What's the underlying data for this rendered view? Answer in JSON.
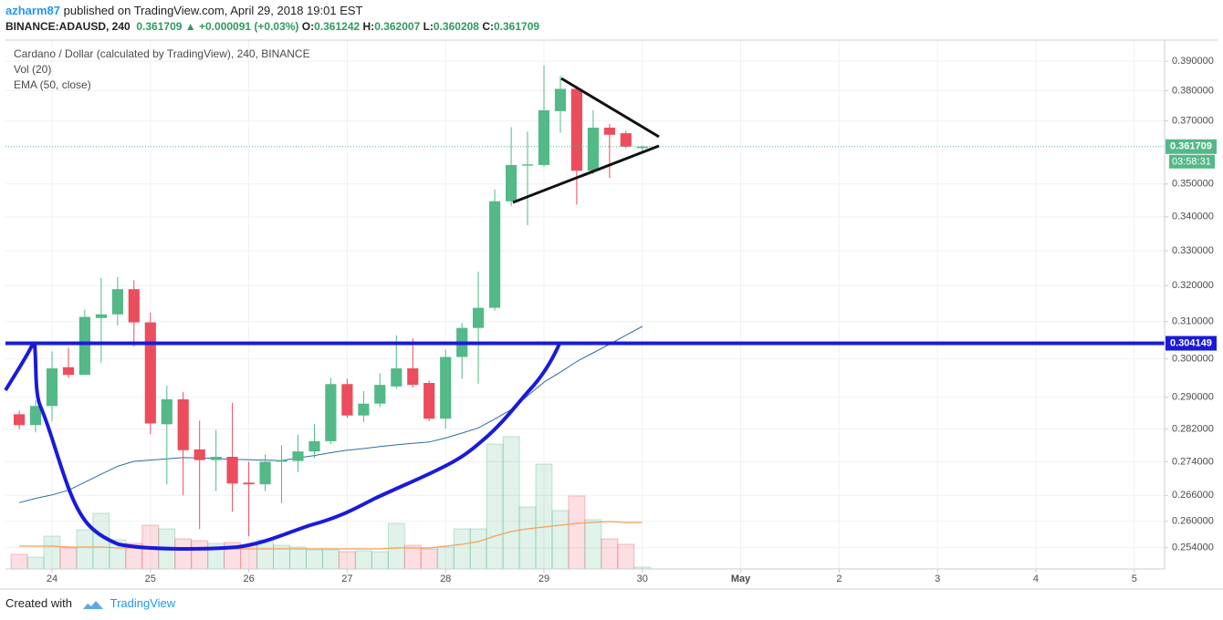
{
  "header": {
    "author": "azharm87",
    "published": "published on TradingView.com, April 29, 2018 19:01 EST",
    "symbol": "BINANCE:ADAUSD, 240",
    "change": "+0.000091 (+0.03%)",
    "ohlc_labels": [
      "O:",
      "H:",
      "L:",
      "C:"
    ]
  },
  "chart_data": {
    "type": "candlestick",
    "title": "Cardano / Dollar (calculated by TradingView), 240, BINANCE",
    "x": [
      23.667,
      23.833,
      24,
      24.167,
      24.333,
      24.5,
      24.667,
      24.833,
      25,
      25.167,
      25.333,
      25.5,
      25.667,
      25.833,
      26,
      26.167,
      26.333,
      26.5,
      26.667,
      26.833,
      27,
      27.167,
      27.333,
      27.5,
      27.667,
      27.833,
      28,
      28.167,
      28.333,
      28.5,
      28.667,
      28.833,
      29,
      29.167,
      29.333,
      29.5,
      29.667,
      29.833,
      30
    ],
    "open": [
      0.2857,
      0.283,
      0.2878,
      0.2978,
      0.2958,
      0.311,
      0.312,
      0.319,
      0.3098,
      0.2832,
      0.2895,
      0.277,
      0.2744,
      0.2752,
      0.269,
      0.2686,
      0.274,
      0.2742,
      0.2765,
      0.279,
      0.2934,
      0.2854,
      0.2884,
      0.2928,
      0.2975,
      0.2937,
      0.2846,
      0.3005,
      0.3083,
      0.3138,
      0.3447,
      0.3557,
      0.3559,
      0.3732,
      0.3806,
      0.3541,
      0.3678,
      0.366,
      0.361242
    ],
    "high": [
      0.2866,
      0.2893,
      0.302,
      0.303,
      0.3133,
      0.3222,
      0.3225,
      0.3215,
      0.3125,
      0.293,
      0.2914,
      0.2841,
      0.2818,
      0.2886,
      0.274,
      0.2758,
      0.278,
      0.2806,
      0.2833,
      0.295,
      0.2948,
      0.2916,
      0.2962,
      0.3063,
      0.3055,
      0.2943,
      0.3025,
      0.3096,
      0.324,
      0.3483,
      0.368,
      0.3665,
      0.3885,
      0.385,
      0.3812,
      0.3735,
      0.369,
      0.3668,
      0.362007
    ],
    "low": [
      0.282,
      0.2812,
      0.284,
      0.295,
      0.2958,
      0.299,
      0.309,
      0.3033,
      0.2807,
      0.2686,
      0.266,
      0.2582,
      0.267,
      0.2622,
      0.2566,
      0.267,
      0.2642,
      0.2715,
      0.2749,
      0.2783,
      0.2848,
      0.2838,
      0.2875,
      0.2922,
      0.2925,
      0.284,
      0.2821,
      0.2948,
      0.2935,
      0.313,
      0.3433,
      0.3375,
      0.3553,
      0.3662,
      0.3437,
      0.353,
      0.3518,
      0.3612,
      0.360208
    ],
    "close": [
      0.283,
      0.2878,
      0.2975,
      0.2958,
      0.3113,
      0.312,
      0.319,
      0.3098,
      0.2834,
      0.2895,
      0.2768,
      0.2744,
      0.2752,
      0.2688,
      0.2686,
      0.274,
      0.2744,
      0.2765,
      0.279,
      0.2934,
      0.2854,
      0.2884,
      0.2932,
      0.2975,
      0.2932,
      0.2846,
      0.3005,
      0.3083,
      0.3138,
      0.3447,
      0.3559,
      0.3561,
      0.3735,
      0.3806,
      0.3541,
      0.3678,
      0.3655,
      0.3617,
      0.361709
    ],
    "up_color": "#53b987",
    "down_color": "#eb4d5c",
    "volume": {
      "name": "Vol (20)",
      "values": [
        16,
        13,
        36,
        23,
        43,
        61,
        32,
        28,
        48,
        44,
        33,
        31,
        28,
        29,
        26,
        32,
        26,
        24,
        21,
        21,
        19,
        20,
        19,
        50,
        26,
        22,
        24,
        44,
        44,
        137,
        145,
        68,
        115,
        64,
        80,
        54,
        33,
        27,
        2
      ],
      "ma": [
        25,
        25,
        25,
        24,
        24,
        24,
        23,
        23,
        23,
        23,
        23,
        22,
        22,
        22,
        22,
        22,
        22,
        22,
        22,
        22,
        22,
        22,
        22,
        23,
        23,
        23,
        25,
        27,
        30,
        36,
        41,
        44,
        46,
        48,
        50,
        51,
        52,
        51,
        51
      ],
      "ma_color": "#f5a05a",
      "lim": [
        0,
        580
      ]
    },
    "ema": {
      "name": "EMA (50, close)",
      "color": "#2f6ba5",
      "values": [
        0.2643,
        0.2653,
        0.2661,
        0.2672,
        0.2691,
        0.271,
        0.2729,
        0.2741,
        0.2744,
        0.2747,
        0.275,
        0.2749,
        0.2748,
        0.2746,
        0.2745,
        0.2744,
        0.2743,
        0.2749,
        0.2755,
        0.2762,
        0.2768,
        0.2772,
        0.2777,
        0.2781,
        0.2785,
        0.2788,
        0.2798,
        0.281,
        0.2823,
        0.2845,
        0.2869,
        0.2904,
        0.2939,
        0.2965,
        0.2993,
        0.3016,
        0.3039,
        0.3063,
        0.3087
      ]
    },
    "hline": {
      "value": 0.304149,
      "color": "#1a1adb"
    },
    "countdown": "03:58:31",
    "xlim": [
      23.527,
      35.308
    ],
    "xticks": [
      24,
      25,
      26,
      27,
      28,
      29,
      30,
      {
        "value": 31,
        "label": "May"
      },
      {
        "value": 32,
        "label": "2"
      },
      {
        "value": 33,
        "label": "3"
      },
      {
        "value": 34,
        "label": "4"
      },
      {
        "value": 35,
        "label": "5"
      }
    ],
    "ylim": [
      0.2493,
      0.3973
    ],
    "log_scale": true,
    "grid": true,
    "yticks": [
      {
        "value": 0.254,
        "label": "0.254000"
      },
      {
        "value": 0.26,
        "label": "0.260000"
      },
      {
        "value": 0.266,
        "label": "0.266000"
      },
      {
        "value": 0.274,
        "label": "0.274000"
      },
      {
        "value": 0.282,
        "label": "0.282000"
      },
      {
        "value": 0.29,
        "label": "0.290000"
      },
      {
        "value": 0.3,
        "label": "0.300000"
      },
      {
        "value": 0.31,
        "label": "0.310000"
      },
      {
        "value": 0.32,
        "label": "0.320000"
      },
      {
        "value": 0.33,
        "label": "0.330000"
      },
      {
        "value": 0.34,
        "label": "0.340000"
      },
      {
        "value": 0.35,
        "label": "0.350000"
      },
      {
        "value": 0.37,
        "label": "0.370000"
      },
      {
        "value": 0.38,
        "label": "0.380000"
      },
      {
        "value": 0.39,
        "label": "0.390000"
      }
    ]
  },
  "footer": {
    "created": "Created with",
    "brand": "TradingView"
  }
}
